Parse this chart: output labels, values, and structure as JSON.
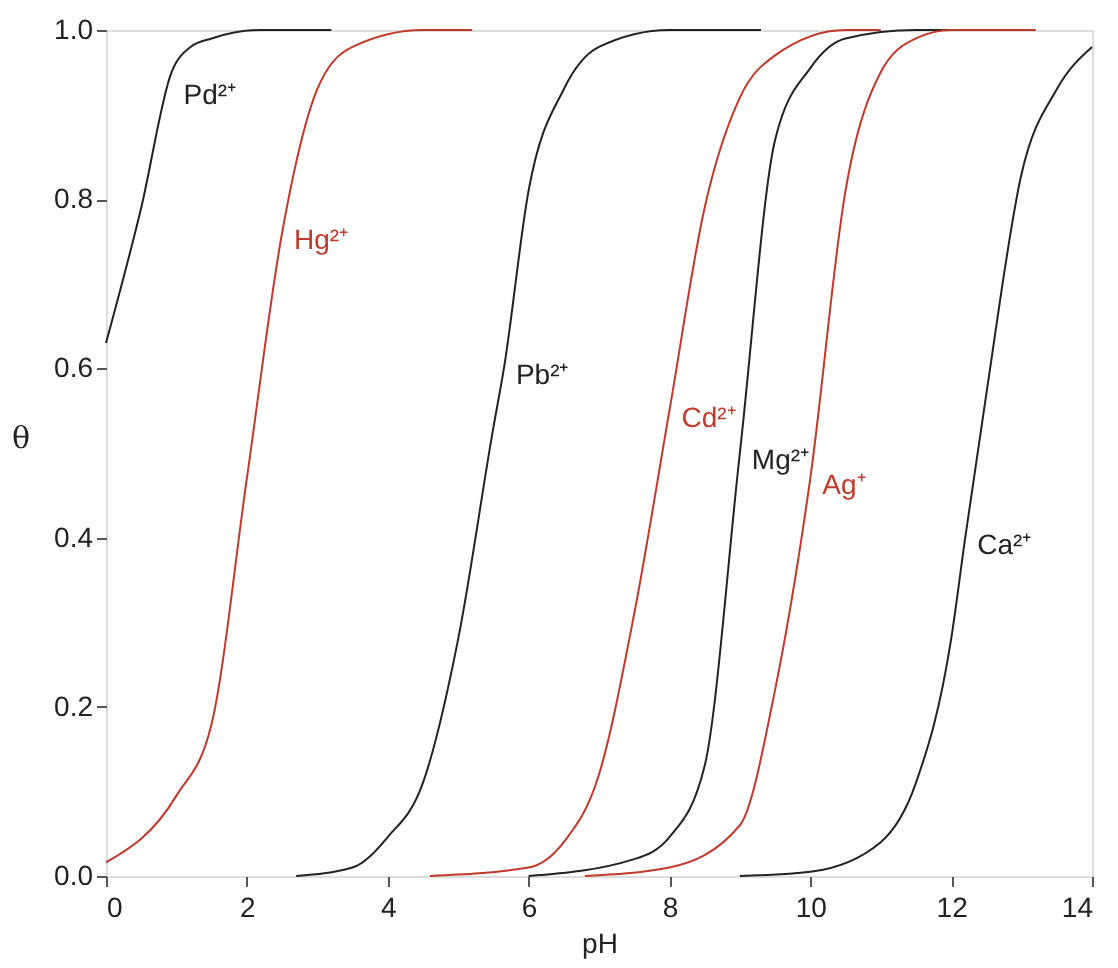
{
  "chart_data": {
    "type": "line",
    "xlabel": "pH",
    "ylabel": "θ",
    "xlim": [
      0,
      14
    ],
    "ylim": [
      0,
      1
    ],
    "xticks": [
      0,
      2,
      4,
      6,
      8,
      10,
      12,
      14
    ],
    "yticks": [
      {
        "value": 0,
        "label": "0.0"
      },
      {
        "value": 0.2,
        "label": "0.2"
      },
      {
        "value": 0.4,
        "label": "0.4"
      },
      {
        "value": 0.6,
        "label": "0.6"
      },
      {
        "value": 0.8,
        "label": "0.8"
      },
      {
        "value": 1,
        "label": "1.0"
      }
    ],
    "grid": false,
    "marker": "none",
    "line_style": "solid",
    "series": [
      {
        "color": "#222222",
        "x": [
          0,
          0.5,
          0.93,
          1.2,
          1.5,
          2.2,
          3.2
        ],
        "values": [
          0.63,
          0.79,
          0.95,
          0.98,
          0.99,
          1.0,
          1.0
        ]
      },
      {
        "color": "#c0392b",
        "x": [
          0,
          1,
          1.5,
          2,
          2.5,
          3,
          3.5,
          4.5,
          5.2
        ],
        "values": [
          0.016,
          0.095,
          0.18,
          0.47,
          0.76,
          0.93,
          0.98,
          1.0,
          1.0
        ]
      },
      {
        "color": "#222222",
        "x": [
          2.7,
          3.5,
          4,
          4.5,
          5,
          5.5,
          5.65,
          6,
          6.5,
          7,
          8,
          9.3
        ],
        "values": [
          0,
          0.01,
          0.046,
          0.11,
          0.28,
          0.53,
          0.6,
          0.81,
          0.93,
          0.98,
          1.0,
          1.0
        ]
      },
      {
        "color": "#c0392b",
        "x": [
          4.6,
          6,
          6.5,
          7,
          7.5,
          8,
          8.5,
          9,
          9.5,
          10.5,
          11
        ],
        "values": [
          0,
          0.01,
          0.04,
          0.12,
          0.31,
          0.55,
          0.79,
          0.92,
          0.97,
          1.0,
          1.0
        ]
      },
      {
        "color": "#222222",
        "x": [
          6,
          7.5,
          8,
          8.5,
          9,
          9.5,
          10,
          10.5,
          11.5,
          12
        ],
        "values": [
          0,
          0.02,
          0.046,
          0.13,
          0.5,
          0.87,
          0.955,
          0.99,
          1.0,
          1.0
        ]
      },
      {
        "color": "#c0392b",
        "x": [
          6.8,
          8,
          9,
          9.5,
          10,
          10.5,
          11,
          11.5,
          12,
          13.2
        ],
        "values": [
          0,
          0.01,
          0.06,
          0.22,
          0.47,
          0.81,
          0.95,
          0.99,
          1.0,
          1.0
        ]
      },
      {
        "color": "#222222",
        "x": [
          9,
          10,
          11,
          11.5,
          12,
          12.2,
          12.5,
          13,
          13.5,
          14
        ],
        "values": [
          0,
          0.005,
          0.04,
          0.11,
          0.28,
          0.4,
          0.57,
          0.83,
          0.93,
          0.98
        ]
      }
    ],
    "annotations": [
      {
        "text": "Pd²⁺",
        "x": 0.93,
        "y": 0.95
      },
      {
        "text": "Hg²⁺",
        "x": 2.5,
        "y": 0.76
      },
      {
        "text": "Pb²⁺",
        "x": 5.65,
        "y": 0.6
      },
      {
        "text": "Cd²⁺",
        "x": 8.0,
        "y": 0.55
      },
      {
        "text": "Mg²⁺",
        "x": 9.0,
        "y": 0.5
      },
      {
        "text": "Ag⁺",
        "x": 10.0,
        "y": 0.47
      },
      {
        "text": "Ca²⁺",
        "x": 12.2,
        "y": 0.4
      }
    ]
  }
}
